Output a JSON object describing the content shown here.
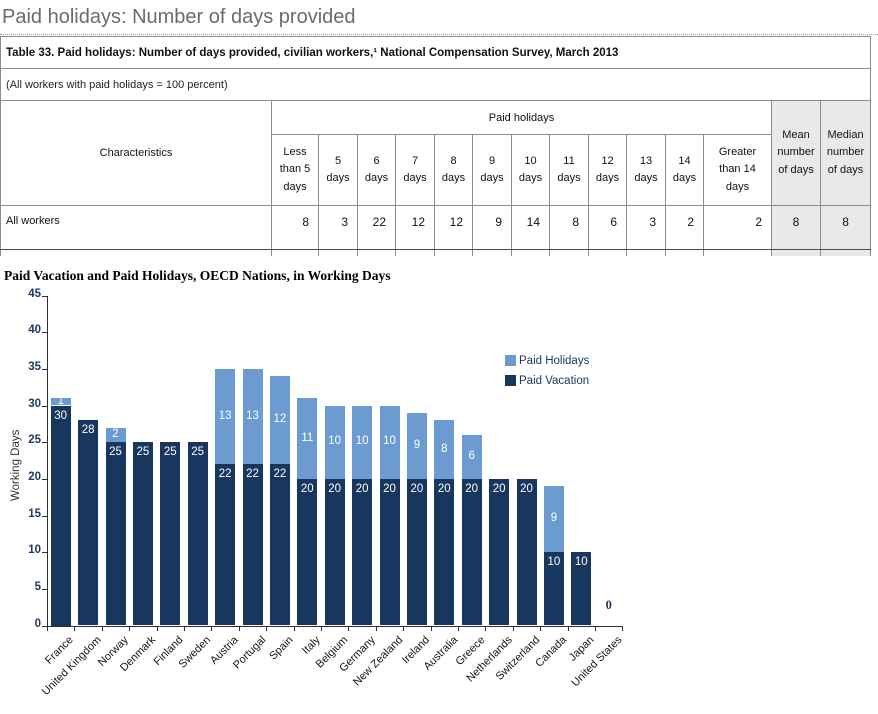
{
  "page": {
    "title": "Paid holidays: Number of days provided"
  },
  "table": {
    "title": "Table 33. Paid holidays: Number of days provided, civilian workers,¹ National Compensation Survey, March 2013",
    "note": "(All workers with paid holidays = 100 percent)",
    "characteristics_label": "Characteristics",
    "group_label": "Paid holidays",
    "mean_label": "Mean\nnumber\nof days",
    "median_label": "Median\nnumber\nof days",
    "day_columns": [
      "Less\nthan 5\ndays",
      "5\ndays",
      "6\ndays",
      "7\ndays",
      "8\ndays",
      "9\ndays",
      "10\ndays",
      "11\ndays",
      "12\ndays",
      "13\ndays",
      "14\ndays",
      "Greater\nthan 14\ndays"
    ],
    "rows": [
      {
        "label": "All workers",
        "values": [
          8,
          3,
          22,
          12,
          12,
          9,
          14,
          8,
          6,
          3,
          2,
          2
        ],
        "mean": 8,
        "median": 8
      }
    ]
  },
  "chart_data": {
    "type": "bar",
    "stacked": true,
    "title": "Paid Vacation and Paid Holidays, OECD Nations, in Working Days",
    "xlabel": "",
    "ylabel": "Working Days",
    "ylim": [
      0,
      45
    ],
    "ytick_step": 5,
    "yticks": [
      0,
      5,
      10,
      15,
      20,
      25,
      30,
      35,
      40,
      45
    ],
    "grid": false,
    "legend_position": "upper-right-inside",
    "legend": [
      {
        "name": "Paid Holidays",
        "color": "#6C9BD2"
      },
      {
        "name": "Paid Vacation",
        "color": "#17375E"
      }
    ],
    "categories": [
      "France",
      "United Kingdom",
      "Norway",
      "Denmark",
      "Finland",
      "Sweden",
      "Austria",
      "Portugal",
      "Spain",
      "Italy",
      "Belgium",
      "Germany",
      "New Zealand",
      "Ireland",
      "Australia",
      "Greece",
      "Netherlands",
      "Switzerland",
      "Canada",
      "Japan",
      "United States"
    ],
    "series": [
      {
        "name": "Paid Vacation",
        "color": "#17375E",
        "values": [
          30,
          28,
          25,
          25,
          25,
          25,
          22,
          22,
          22,
          20,
          20,
          20,
          20,
          20,
          20,
          20,
          20,
          20,
          10,
          10,
          0
        ]
      },
      {
        "name": "Paid Holidays",
        "color": "#6C9BD2",
        "values": [
          1,
          0,
          2,
          0,
          0,
          0,
          13,
          13,
          12,
          11,
          10,
          10,
          10,
          9,
          8,
          6,
          0,
          0,
          9,
          0,
          0
        ]
      }
    ],
    "totals": [
      31,
      28,
      27,
      25,
      25,
      25,
      35,
      35,
      34,
      31,
      30,
      30,
      30,
      29,
      28,
      26,
      20,
      20,
      19,
      10,
      0
    ],
    "zero_label": "0"
  }
}
